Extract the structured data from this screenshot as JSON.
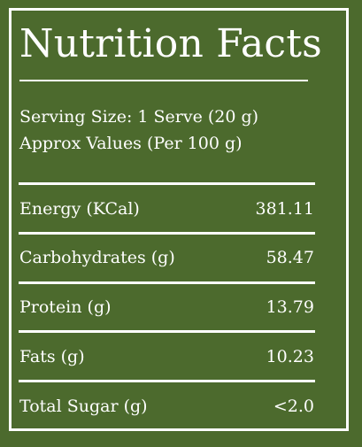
{
  "title": "Nutrition Facts",
  "serving_size": "Serving Size: 1 Serve (20 g)",
  "approx_values": "Approx Values (Per 100 g)",
  "nutrients": [
    {
      "label": "Energy (KCal)",
      "value": "381.11"
    },
    {
      "label": "Carbohydrates (g)",
      "value": "58.47"
    },
    {
      "label": "Protein (g)",
      "value": "13.79"
    },
    {
      "label": "Fats (g)",
      "value": "10.23"
    },
    {
      "label": "Total Sugar (g)",
      "value": "<2.0"
    }
  ],
  "colors": {
    "background": "#4c6a2d",
    "foreground": "#ffffff"
  }
}
